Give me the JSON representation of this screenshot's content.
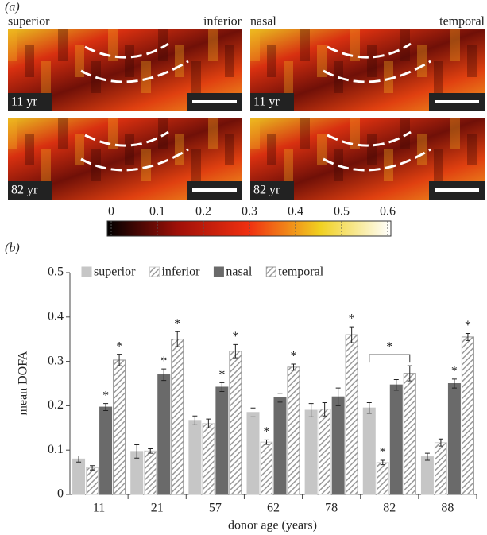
{
  "panel_a": {
    "label": "(a)",
    "left_labels": [
      "superior",
      "inferior"
    ],
    "right_labels": [
      "nasal",
      "temporal"
    ],
    "ages": [
      "11 yr",
      "82 yr"
    ],
    "colorbar": {
      "ticks": [
        0,
        0.1,
        0.2,
        0.3,
        0.4,
        0.5,
        0.6
      ],
      "lim": [
        0,
        0.6
      ]
    }
  },
  "chart_data": {
    "type": "bar",
    "panel_label": "(b)",
    "ylabel": "mean DOFA",
    "xlabel": "donor age (years)",
    "categories": [
      "11",
      "21",
      "57",
      "62",
      "78",
      "82",
      "88"
    ],
    "series": [
      {
        "name": "superior",
        "color": "#c6c6c6",
        "hatch": false,
        "values": [
          0.08,
          0.097,
          0.167,
          0.185,
          0.19,
          0.195,
          0.085
        ],
        "errors": [
          0.007,
          0.015,
          0.01,
          0.01,
          0.015,
          0.012,
          0.008
        ],
        "significance": [
          null,
          null,
          null,
          null,
          null,
          null,
          null
        ]
      },
      {
        "name": "inferior",
        "color": "#d0d0d0",
        "hatch": true,
        "values": [
          0.06,
          0.098,
          0.16,
          0.118,
          0.192,
          0.072,
          0.117
        ],
        "errors": [
          0.005,
          0.005,
          0.01,
          0.005,
          0.015,
          0.005,
          0.008
        ],
        "significance": [
          null,
          null,
          null,
          "*",
          null,
          "*",
          null
        ]
      },
      {
        "name": "nasal",
        "color": "#6a6a6a",
        "hatch": false,
        "values": [
          0.197,
          0.27,
          0.242,
          0.218,
          0.22,
          0.247,
          0.25
        ],
        "errors": [
          0.008,
          0.013,
          0.01,
          0.01,
          0.02,
          0.012,
          0.01
        ],
        "significance": [
          "*",
          "*",
          "*",
          null,
          null,
          null,
          "*"
        ]
      },
      {
        "name": "temporal",
        "color": "#9a9a9a",
        "hatch": true,
        "values": [
          0.303,
          0.35,
          0.323,
          0.287,
          0.36,
          0.273,
          0.355
        ],
        "errors": [
          0.013,
          0.017,
          0.015,
          0.007,
          0.018,
          0.017,
          0.008
        ],
        "significance": [
          "*",
          "*",
          "*",
          "*",
          "*",
          null,
          "*"
        ]
      }
    ],
    "bracket": {
      "category": "82",
      "label": "*"
    },
    "ylim": [
      0,
      0.5
    ],
    "yticks": [
      0,
      0.1,
      0.2,
      0.3,
      0.4,
      0.5
    ],
    "grid": false
  }
}
